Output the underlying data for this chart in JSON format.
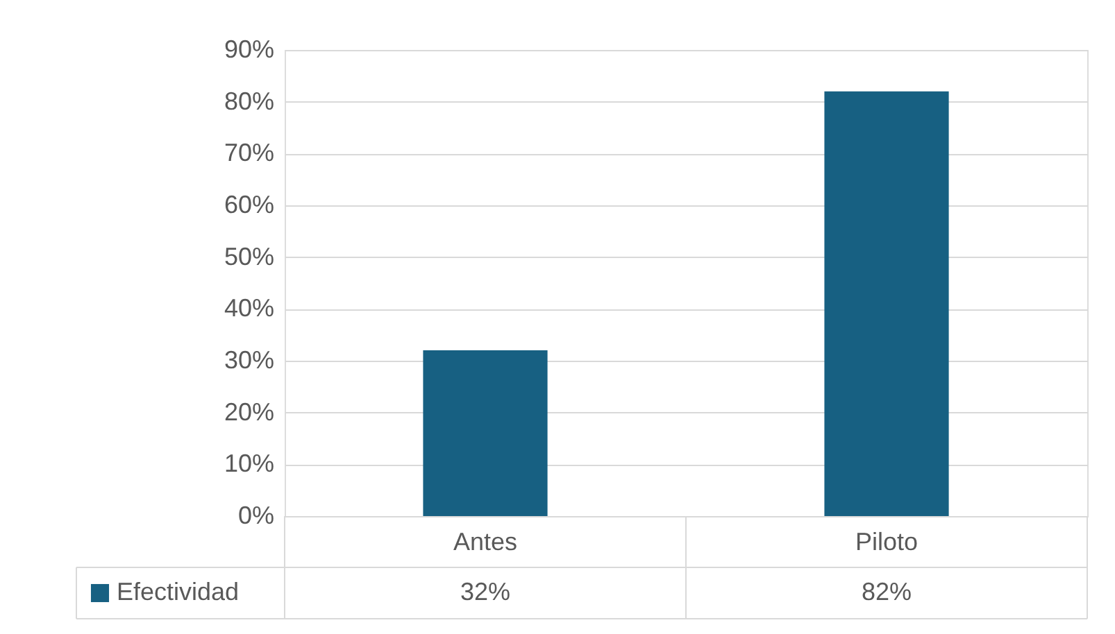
{
  "chart_data": {
    "type": "bar",
    "categories": [
      "Antes",
      "Piloto"
    ],
    "series": [
      {
        "name": "Efectividad",
        "color": "#176082",
        "values": [
          32,
          82
        ],
        "value_labels": [
          "32%",
          "82%"
        ]
      }
    ],
    "ylim": [
      0,
      90
    ],
    "yticks": [
      {
        "value": 0,
        "label": "0%"
      },
      {
        "value": 10,
        "label": "10%"
      },
      {
        "value": 20,
        "label": "20%"
      },
      {
        "value": 30,
        "label": "30%"
      },
      {
        "value": 40,
        "label": "40%"
      },
      {
        "value": 50,
        "label": "50%"
      },
      {
        "value": 60,
        "label": "60%"
      },
      {
        "value": 70,
        "label": "70%"
      },
      {
        "value": 80,
        "label": "80%"
      },
      {
        "value": 90,
        "label": "90%"
      }
    ],
    "grid": "y",
    "legend": "bottom"
  }
}
